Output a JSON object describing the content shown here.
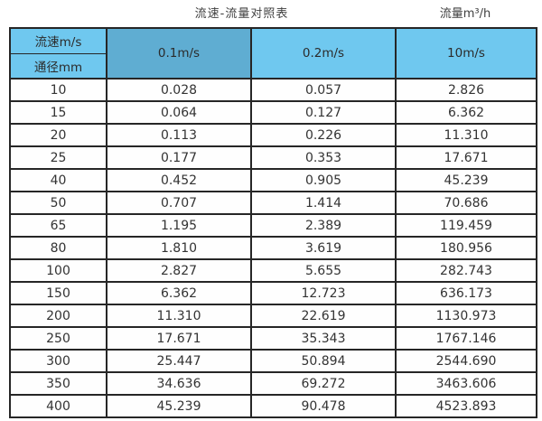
{
  "header": {
    "title": "流速-流量对照表",
    "unit": "流量m³/h"
  },
  "table": {
    "corner_top": "流速m/s",
    "corner_bottom": "通径mm",
    "columns": [
      "0.1m/s",
      "0.2m/s",
      "10m/s"
    ],
    "rows": [
      [
        "10",
        "0.028",
        "0.057",
        "2.826"
      ],
      [
        "15",
        "0.064",
        "0.127",
        "6.362"
      ],
      [
        "20",
        "0.113",
        "0.226",
        "11.310"
      ],
      [
        "25",
        "0.177",
        "0.353",
        "17.671"
      ],
      [
        "40",
        "0.452",
        "0.905",
        "45.239"
      ],
      [
        "50",
        "0.707",
        "1.414",
        "70.686"
      ],
      [
        "65",
        "1.195",
        "2.389",
        "119.459"
      ],
      [
        "80",
        "1.810",
        "3.619",
        "180.956"
      ],
      [
        "100",
        "2.827",
        "5.655",
        "282.743"
      ],
      [
        "150",
        "6.362",
        "12.723",
        "636.173"
      ],
      [
        "200",
        "11.310",
        "22.619",
        "1130.973"
      ],
      [
        "250",
        "17.671",
        "35.343",
        "1767.146"
      ],
      [
        "300",
        "25.447",
        "50.894",
        "2544.690"
      ],
      [
        "350",
        "34.636",
        "69.272",
        "3463.606"
      ],
      [
        "400",
        "45.239",
        "90.478",
        "4523.893"
      ]
    ]
  },
  "colors": {
    "header_light_blue": "#6fc8ef",
    "header_dark_blue": "#5fadd2",
    "shaded_column_gray": "#dbdbdb",
    "border": "#262626",
    "text": "#333333"
  },
  "chart_data": {
    "type": "table",
    "title": "流速-流量对照表",
    "unit_label": "流量m³/h",
    "row_axis_label_top": "流速m/s",
    "row_axis_label_bottom": "通径mm",
    "columns": [
      "0.1m/s",
      "0.2m/s",
      "10m/s"
    ],
    "diameters_mm": [
      10,
      15,
      20,
      25,
      40,
      50,
      65,
      80,
      100,
      150,
      200,
      250,
      300,
      350,
      400
    ],
    "series": [
      {
        "name": "0.1m/s",
        "values": [
          0.028,
          0.064,
          0.113,
          0.177,
          0.452,
          0.707,
          1.195,
          1.81,
          2.827,
          6.362,
          11.31,
          17.671,
          25.447,
          34.636,
          45.239
        ]
      },
      {
        "name": "0.2m/s",
        "values": [
          0.057,
          0.127,
          0.226,
          0.353,
          0.905,
          1.414,
          2.389,
          3.619,
          5.655,
          12.723,
          22.619,
          35.343,
          50.894,
          69.272,
          90.478
        ]
      },
      {
        "name": "10m/s",
        "values": [
          2.826,
          6.362,
          11.31,
          17.671,
          45.239,
          70.686,
          119.459,
          180.956,
          282.743,
          636.173,
          1130.973,
          1767.146,
          2544.69,
          3463.606,
          4523.893
        ]
      }
    ]
  }
}
